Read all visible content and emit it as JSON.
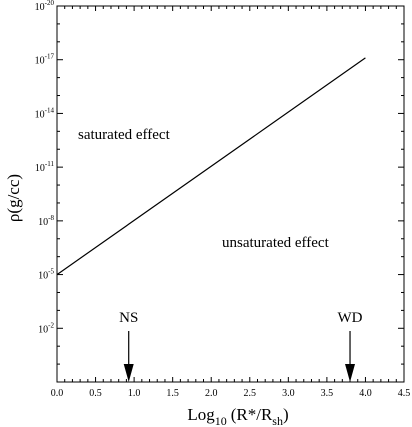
{
  "chart_data": {
    "type": "line",
    "xlabel": {
      "base": "Log",
      "base_sub": "10",
      "expr": "(R*/R",
      "expr_sub": "sh",
      "close": ")"
    },
    "ylabel": "ρ(g/cc)",
    "xlim": [
      0.0,
      4.5
    ],
    "ylim_log10": [
      1,
      -20
    ],
    "y_scale": "log",
    "y_axis_inverted": true,
    "x_ticks": [
      "0.0",
      "0.5",
      "1.0",
      "1.5",
      "2.0",
      "2.5",
      "3.0",
      "3.5",
      "4.0",
      "4.5"
    ],
    "y_ticks": [
      {
        "base": "10",
        "exp": "-20"
      },
      {
        "base": "10",
        "exp": "-17"
      },
      {
        "base": "10",
        "exp": "-14"
      },
      {
        "base": "10",
        "exp": "-11"
      },
      {
        "base": "10",
        "exp": "-8"
      },
      {
        "base": "10",
        "exp": "-5"
      },
      {
        "base": "10",
        "exp": "-2"
      }
    ],
    "series": [
      {
        "points": [
          [
            0.0,
            -5.0
          ],
          [
            4.0,
            -17.1
          ]
        ]
      }
    ],
    "regions": [
      "saturated effect",
      "unsaturated effect"
    ],
    "markers": [
      {
        "label": "NS",
        "x": 0.93
      },
      {
        "label": "WD",
        "x": 3.8
      }
    ],
    "grid": false
  }
}
